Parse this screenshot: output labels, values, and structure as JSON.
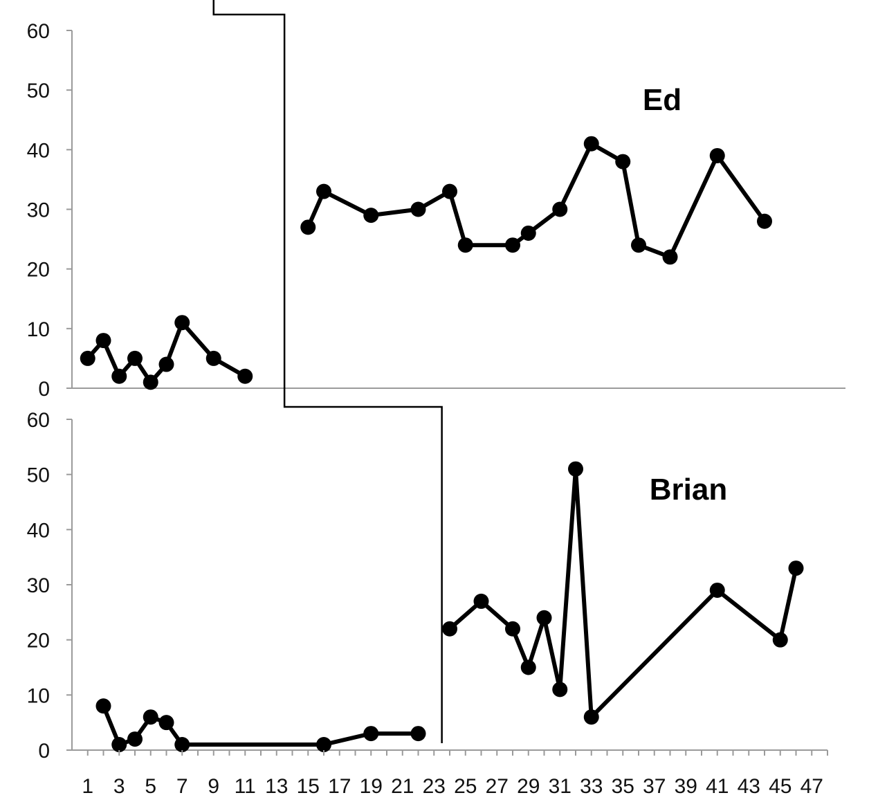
{
  "chart_data": [
    {
      "type": "line",
      "title": "Ed",
      "xlabel": "",
      "ylabel": "",
      "ylim": [
        0,
        60
      ],
      "yticks": [
        0,
        10,
        20,
        30,
        40,
        50,
        60
      ],
      "grid": false,
      "series": [
        {
          "points": [
            [
              1,
              5
            ],
            [
              2,
              8
            ],
            [
              3,
              2
            ],
            [
              4,
              5
            ],
            [
              5,
              1
            ],
            [
              6,
              4
            ],
            [
              7,
              11
            ],
            [
              9,
              5
            ],
            [
              11,
              2
            ]
          ]
        },
        {
          "points": [
            [
              15,
              27
            ],
            [
              16,
              33
            ],
            [
              19,
              29
            ],
            [
              22,
              30
            ],
            [
              24,
              33
            ],
            [
              25,
              24
            ],
            [
              28,
              24
            ],
            [
              29,
              26
            ],
            [
              31,
              30
            ],
            [
              33,
              41
            ],
            [
              35,
              38
            ],
            [
              36,
              24
            ],
            [
              38,
              22
            ],
            [
              41,
              39
            ],
            [
              44,
              28
            ]
          ]
        }
      ],
      "phase_change_after_session": 13
    },
    {
      "type": "line",
      "title": "Brian",
      "xlabel": "",
      "ylabel": "",
      "ylim": [
        0,
        60
      ],
      "yticks": [
        0,
        10,
        20,
        30,
        40,
        50,
        60
      ],
      "grid": false,
      "series": [
        {
          "points": [
            [
              2,
              8
            ],
            [
              3,
              1
            ],
            [
              4,
              2
            ],
            [
              5,
              6
            ],
            [
              6,
              5
            ],
            [
              7,
              1
            ],
            [
              16,
              1
            ],
            [
              19,
              3
            ],
            [
              22,
              3
            ]
          ]
        },
        {
          "points": [
            [
              24,
              22
            ],
            [
              26,
              27
            ],
            [
              28,
              22
            ],
            [
              29,
              15
            ],
            [
              30,
              24
            ],
            [
              31,
              11
            ],
            [
              32,
              51
            ],
            [
              33,
              6
            ],
            [
              41,
              29
            ],
            [
              45,
              20
            ],
            [
              46,
              33
            ]
          ]
        }
      ],
      "phase_change_after_session": 23
    }
  ],
  "x_axis": {
    "xlim": [
      0,
      48
    ],
    "tick_labels": [
      "1",
      "3",
      "5",
      "7",
      "9",
      "11",
      "13",
      "15",
      "17",
      "19",
      "21",
      "23",
      "25",
      "27",
      "29",
      "31",
      "33",
      "35",
      "37",
      "39",
      "41",
      "43",
      "45",
      "47"
    ]
  },
  "colors": {
    "line": "#000000",
    "axis": "#9a9a9a",
    "text": "#111111"
  }
}
